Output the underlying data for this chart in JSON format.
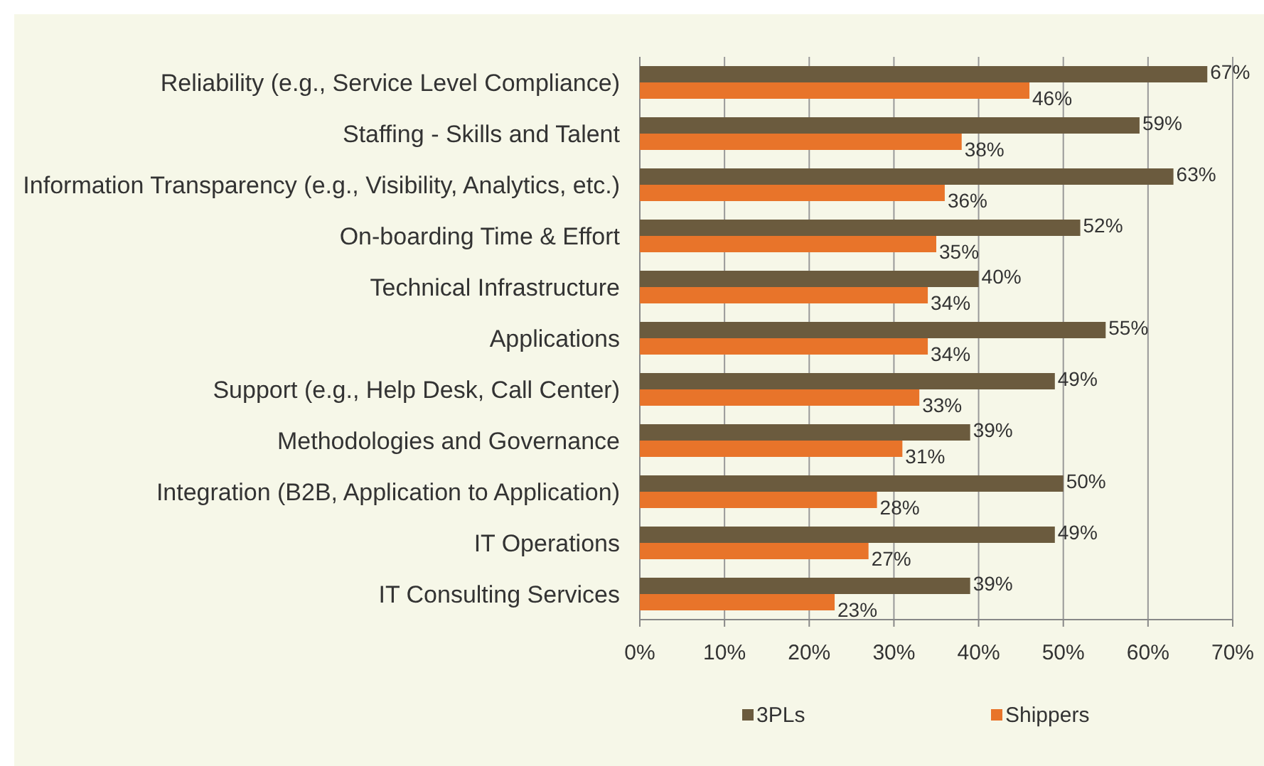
{
  "chart_data": {
    "type": "bar",
    "orientation": "horizontal",
    "categories": [
      "Reliability (e.g., Service Level Compliance)",
      "Staffing - Skills and Talent",
      "Information Transparency (e.g., Visibility, Analytics, etc.)",
      "On-boarding Time & Effort",
      "Technical Infrastructure",
      "Applications",
      "Support (e.g., Help Desk, Call Center)",
      "Methodologies and Governance",
      "Integration (B2B, Application to Application)",
      "IT Operations",
      "IT Consulting Services"
    ],
    "series": [
      {
        "name": "3PLs",
        "color": "#6b5b3e",
        "values": [
          67,
          59,
          63,
          52,
          40,
          55,
          49,
          39,
          50,
          49,
          39
        ],
        "value_labels": [
          "67%",
          "59%",
          "63%",
          "52%",
          "40%",
          "55%",
          "49%",
          "39%",
          "50%",
          "49%",
          "39%"
        ]
      },
      {
        "name": "Shippers",
        "color": "#e8742a",
        "values": [
          46,
          38,
          36,
          35,
          34,
          34,
          33,
          31,
          28,
          27,
          23
        ],
        "value_labels": [
          "46%",
          "38%",
          "36%",
          "35%",
          "34%",
          "34%",
          "33%",
          "31%",
          "28%",
          "27%",
          "23%"
        ]
      }
    ],
    "xlim": [
      0,
      70
    ],
    "xticks": [
      {
        "value": 0,
        "label": "0%"
      },
      {
        "value": 10,
        "label": "10%"
      },
      {
        "value": 20,
        "label": "20%"
      },
      {
        "value": 30,
        "label": "30%"
      },
      {
        "value": 40,
        "label": "40%"
      },
      {
        "value": 50,
        "label": "50%"
      },
      {
        "value": 60,
        "label": "60%"
      },
      {
        "value": 70,
        "label": "70%"
      }
    ],
    "grid": "x",
    "legend": "bottom"
  }
}
